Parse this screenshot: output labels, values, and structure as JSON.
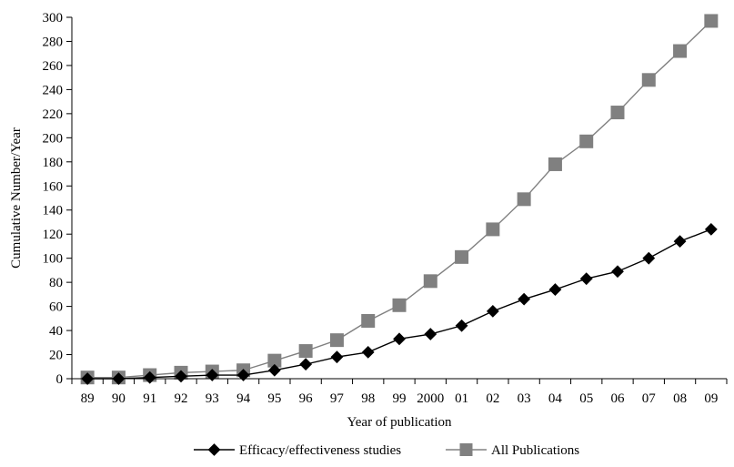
{
  "chart_data": {
    "type": "line",
    "title": "",
    "xlabel": "Year of publication",
    "ylabel": "Cumulative Number/Year",
    "categories": [
      "89",
      "90",
      "91",
      "92",
      "93",
      "94",
      "95",
      "96",
      "97",
      "98",
      "99",
      "2000",
      "01",
      "02",
      "03",
      "04",
      "05",
      "06",
      "07",
      "08",
      "09"
    ],
    "ylim": [
      0,
      300
    ],
    "yticks": [
      0,
      20,
      40,
      60,
      80,
      100,
      120,
      140,
      160,
      180,
      200,
      220,
      240,
      260,
      280,
      300
    ],
    "grid": false,
    "legend_position": "bottom",
    "series": [
      {
        "name": "Efficacy/effectiveness studies",
        "marker": "diamond",
        "color": "#000000",
        "values": [
          0,
          0,
          1,
          2,
          3,
          3,
          7,
          12,
          18,
          22,
          33,
          37,
          44,
          56,
          66,
          74,
          83,
          89,
          100,
          114,
          124
        ]
      },
      {
        "name": "All Publications",
        "marker": "square",
        "color": "#808080",
        "values": [
          1,
          1,
          3,
          5,
          6,
          7,
          15,
          23,
          32,
          48,
          61,
          81,
          101,
          124,
          149,
          178,
          197,
          221,
          248,
          272,
          297
        ]
      }
    ]
  }
}
